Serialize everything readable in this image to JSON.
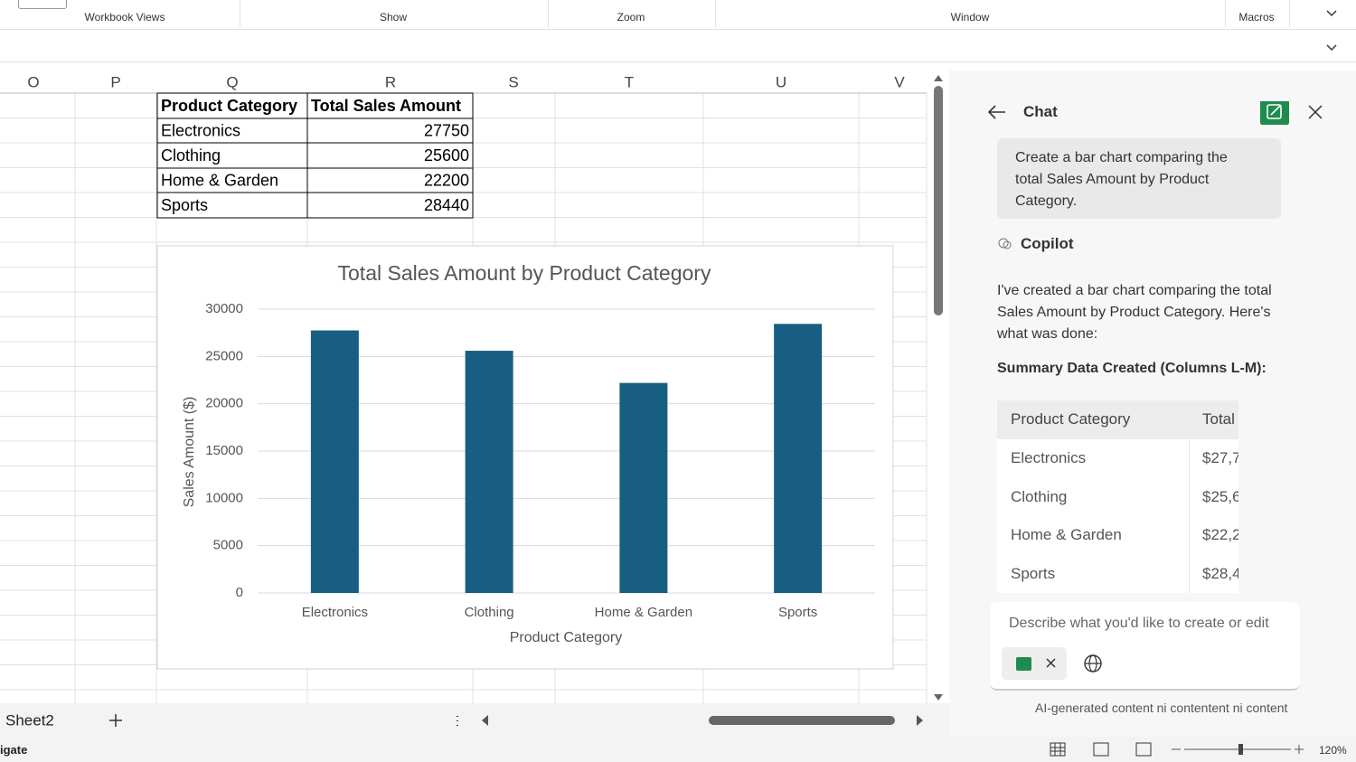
{
  "ribbon": {
    "groups": [
      "Workbook Views",
      "Show",
      "Zoom",
      "Window",
      "Macros"
    ]
  },
  "columns": [
    "O",
    "P",
    "Q",
    "R",
    "S",
    "T",
    "U",
    "V"
  ],
  "sheet_table": {
    "header": [
      "Product Category",
      "Total Sales Amount"
    ]
  },
  "chart_data": {
    "type": "bar",
    "title": "Total Sales Amount by Product Category",
    "x_label": "Product Category",
    "y_label": "Sales Amount ($)",
    "categories": [
      "Electronics",
      "Clothing",
      "Home & Garden",
      "Sports"
    ],
    "values": [
      27750,
      25600,
      22200,
      28440
    ],
    "color": "#175e82",
    "ylim": [
      0,
      30000
    ],
    "yticks": [
      0,
      5000,
      10000,
      15000,
      20000,
      25000,
      30000
    ],
    "grid": true
  },
  "sheet_tabs": {
    "tabs": [
      "Sheet2"
    ]
  },
  "status": {
    "left": "igate",
    "zoom": "120%"
  },
  "chat": {
    "title": "Chat",
    "user_message": "Create a bar chart comparing the total Sales Amount by Product Category.",
    "assistant_name": "Copilot",
    "reply": "I've created a bar chart comparing the total Sales Amount by Product Category. Here's what was done:",
    "summary_heading": "Summary Data Created (Columns L-M):",
    "table": {
      "header": [
        "Product Category",
        "Total"
      ],
      "rows": [
        [
          "Electronics",
          "$27,7"
        ],
        [
          "Clothing",
          "$25,6"
        ],
        [
          "Home & Garden",
          "$22,2"
        ],
        [
          "Sports",
          "$28,4"
        ]
      ]
    },
    "input_placeholder": "Describe what you'd like to create or edit",
    "footer": "AI-generated content ni contentent ni content"
  }
}
